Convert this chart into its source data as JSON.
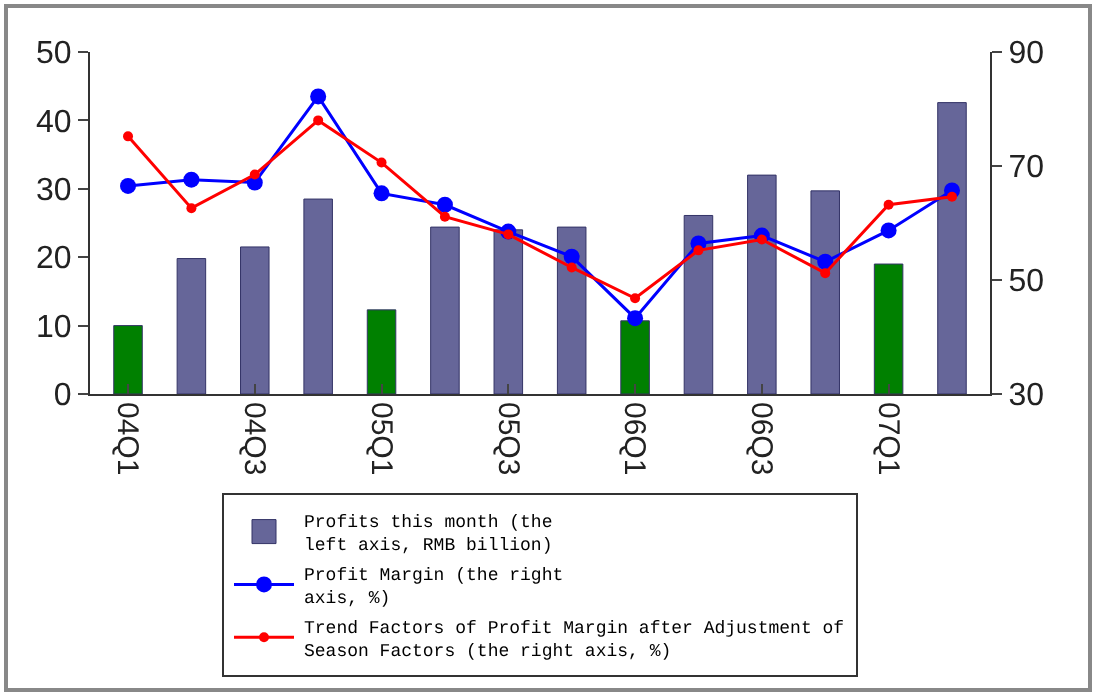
{
  "chart_data": {
    "type": "bar",
    "categories": [
      "04Q1",
      null,
      "04Q3",
      null,
      "05Q1",
      null,
      "05Q3",
      null,
      "06Q1",
      null,
      "06Q3",
      null,
      "07Q1",
      null
    ],
    "series": [
      {
        "name": "Profits this month (the left axis, RMB billion)",
        "color": "#666699",
        "colors": [
          "#008000",
          "#666699",
          "#666699",
          "#666699",
          "#008000",
          "#666699",
          "#666699",
          "#666699",
          "#008000",
          "#666699",
          "#666699",
          "#666699",
          "#008000",
          "#666699"
        ],
        "values": [
          10,
          19.8,
          21.5,
          28.5,
          12.3,
          24.4,
          24,
          24.4,
          10.7,
          26.1,
          32,
          29.7,
          19,
          42.6
        ]
      },
      {
        "name": "Profit Margin (the right axis, %)",
        "type": "line",
        "axis": "y2",
        "color": "#0000ff",
        "values": [
          66.5,
          67.6,
          67.1,
          82.2,
          65.2,
          63.2,
          58.5,
          54.1,
          43.3,
          56.4,
          57.8,
          53.2,
          58.7,
          65.7
        ]
      },
      {
        "name": "Trend Factors of Profit Margin after Adjustment of Season Factors (the right axis, %)",
        "type": "line",
        "axis": "y2",
        "color": "#ff0000",
        "values": [
          75.2,
          62.6,
          68.5,
          78,
          70.6,
          61.1,
          58,
          52.2,
          46.8,
          55.2,
          57.1,
          51.2,
          63.2,
          64.6
        ]
      }
    ],
    "ylim": [
      0,
      50
    ],
    "yticks": [
      0,
      10,
      20,
      30,
      40,
      50
    ],
    "y2lim": [
      30,
      90
    ],
    "y2ticks": [
      30,
      50,
      70,
      90
    ],
    "grid": false,
    "legend": "bottom",
    "marker": "circle",
    "line_style": "solid"
  }
}
